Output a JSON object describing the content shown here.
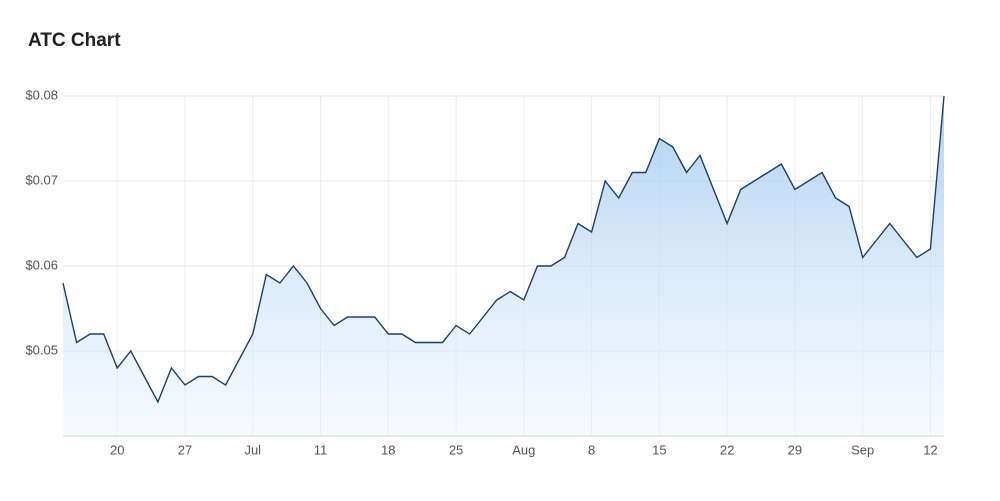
{
  "chart_data": {
    "type": "area",
    "title": "ATC Chart",
    "categories": [
      null,
      null,
      null,
      null,
      "20",
      null,
      null,
      null,
      null,
      "27",
      null,
      null,
      null,
      null,
      "Jul",
      null,
      null,
      null,
      null,
      "11",
      null,
      null,
      null,
      null,
      "18",
      null,
      null,
      null,
      null,
      "25",
      null,
      null,
      null,
      null,
      "Aug",
      null,
      null,
      null,
      null,
      "8",
      null,
      null,
      null,
      null,
      "15",
      null,
      null,
      null,
      null,
      "22",
      null,
      null,
      null,
      null,
      "29",
      null,
      null,
      null,
      null,
      "Sep",
      null,
      null,
      null,
      null,
      "12",
      null
    ],
    "values": [
      0.058,
      0.051,
      0.052,
      0.052,
      0.048,
      0.05,
      0.047,
      0.044,
      0.048,
      0.046,
      0.047,
      0.047,
      0.046,
      0.049,
      0.052,
      0.059,
      0.058,
      0.06,
      0.058,
      0.055,
      0.053,
      0.054,
      0.054,
      0.054,
      0.052,
      0.052,
      0.051,
      0.051,
      0.051,
      0.053,
      0.052,
      0.054,
      0.056,
      0.057,
      0.056,
      0.06,
      0.06,
      0.061,
      0.065,
      0.064,
      0.07,
      0.068,
      0.071,
      0.071,
      0.075,
      0.074,
      0.071,
      0.073,
      0.069,
      0.065,
      0.069,
      0.07,
      0.071,
      0.072,
      0.069,
      0.07,
      0.071,
      0.068,
      0.067,
      0.061,
      0.063,
      0.065,
      0.063,
      0.061,
      0.062,
      0.08
    ],
    "color": "#1d3f6e",
    "ylim": [
      0.04,
      0.08
    ],
    "yticks": [
      {
        "value": 0.05,
        "label": "$0.05"
      },
      {
        "value": 0.06,
        "label": "$0.06"
      },
      {
        "value": 0.07,
        "label": "$0.07"
      },
      {
        "value": 0.08,
        "label": "$0.08"
      }
    ],
    "grid": true
  }
}
